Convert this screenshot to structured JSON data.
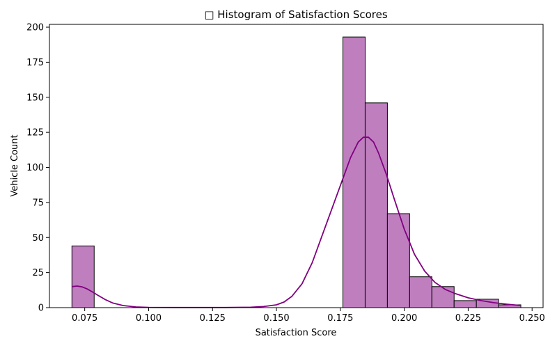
{
  "chart_data": {
    "type": "bar",
    "title": "□ Histogram of Satisfaction Scores",
    "xlabel": "Satisfaction Score",
    "ylabel": "Vehicle Count",
    "xlim": [
      0.0612,
      0.2543
    ],
    "ylim": [
      0,
      202
    ],
    "xticks": [
      0.075,
      0.1,
      0.125,
      0.15,
      0.175,
      0.2,
      0.225,
      0.25
    ],
    "xtick_labels": [
      "0.075",
      "0.100",
      "0.125",
      "0.150",
      "0.175",
      "0.200",
      "0.225",
      "0.250"
    ],
    "yticks": [
      0,
      25,
      50,
      75,
      100,
      125,
      150,
      175,
      200
    ],
    "ytick_labels": [
      "0",
      "25",
      "50",
      "75",
      "100",
      "125",
      "150",
      "175",
      "200"
    ],
    "grid": false,
    "bar_color": "#bf7fbf",
    "edge_color": "#000000",
    "kde_color": "#800080",
    "bins": [
      {
        "x0": 0.07,
        "x1": 0.0787,
        "count": 44
      },
      {
        "x0": 0.0787,
        "x1": 0.0874,
        "count": 0
      },
      {
        "x0": 0.0874,
        "x1": 0.0961,
        "count": 0
      },
      {
        "x0": 0.0961,
        "x1": 0.1048,
        "count": 0
      },
      {
        "x0": 0.1048,
        "x1": 0.1135,
        "count": 0
      },
      {
        "x0": 0.1135,
        "x1": 0.1222,
        "count": 0
      },
      {
        "x0": 0.1222,
        "x1": 0.1309,
        "count": 0
      },
      {
        "x0": 0.1309,
        "x1": 0.1396,
        "count": 0
      },
      {
        "x0": 0.1396,
        "x1": 0.1483,
        "count": 0
      },
      {
        "x0": 0.1483,
        "x1": 0.157,
        "count": 0
      },
      {
        "x0": 0.157,
        "x1": 0.1657,
        "count": 0
      },
      {
        "x0": 0.1657,
        "x1": 0.1744,
        "count": 0
      },
      {
        "x0": 0.176,
        "x1": 0.1847,
        "count": 193
      },
      {
        "x0": 0.1847,
        "x1": 0.1934,
        "count": 146
      },
      {
        "x0": 0.1934,
        "x1": 0.2021,
        "count": 67
      },
      {
        "x0": 0.2021,
        "x1": 0.2108,
        "count": 22
      },
      {
        "x0": 0.2108,
        "x1": 0.2195,
        "count": 15
      },
      {
        "x0": 0.2195,
        "x1": 0.2282,
        "count": 5
      },
      {
        "x0": 0.2282,
        "x1": 0.2369,
        "count": 6
      },
      {
        "x0": 0.2369,
        "x1": 0.2456,
        "count": 2
      }
    ],
    "kde": {
      "x": [
        0.07,
        0.072,
        0.074,
        0.076,
        0.078,
        0.08,
        0.083,
        0.086,
        0.09,
        0.095,
        0.1,
        0.11,
        0.12,
        0.13,
        0.14,
        0.145,
        0.15,
        0.153,
        0.156,
        0.16,
        0.164,
        0.168,
        0.172,
        0.176,
        0.179,
        0.182,
        0.184,
        0.186,
        0.188,
        0.19,
        0.193,
        0.196,
        0.2,
        0.204,
        0.208,
        0.212,
        0.216,
        0.22,
        0.225,
        0.23,
        0.235,
        0.24,
        0.2456
      ],
      "y": [
        15,
        15.4,
        14.8,
        13.3,
        11.2,
        9.0,
        5.8,
        3.3,
        1.5,
        0.5,
        0.2,
        0.1,
        0.1,
        0.1,
        0.3,
        0.8,
        2.0,
        4.0,
        8.0,
        17,
        32,
        52,
        72,
        92,
        107,
        118,
        121.5,
        121.5,
        118,
        110,
        95,
        78,
        56,
        38,
        26,
        18,
        13,
        10,
        7,
        5,
        3.5,
        2.5,
        1.5
      ]
    }
  }
}
